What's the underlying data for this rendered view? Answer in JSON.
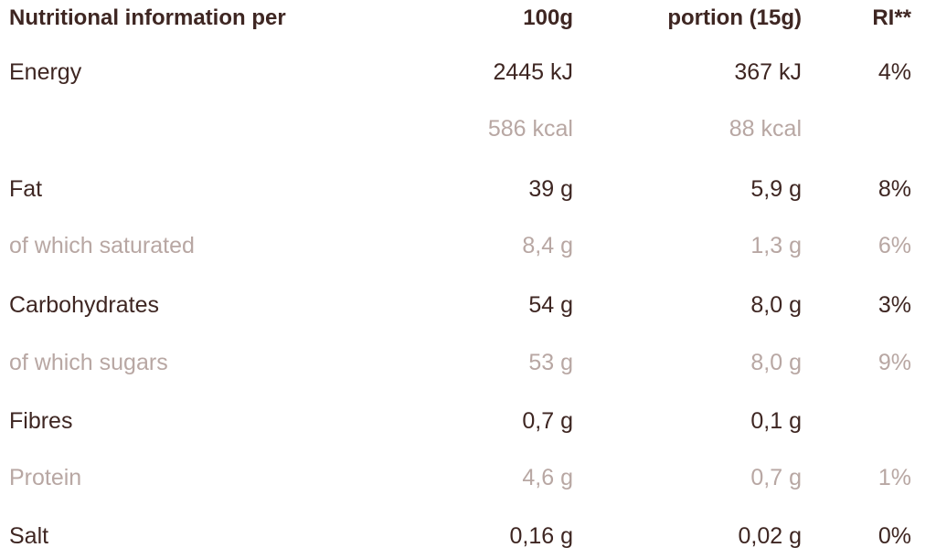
{
  "table": {
    "header": [
      "Nutritional information per",
      "100g",
      "portion (15g)",
      "RI**"
    ],
    "rows": [
      [
        "Energy",
        "2445 kJ",
        "367 kJ",
        "4%"
      ],
      [
        null,
        "586 kcal",
        "88 kcal",
        null
      ],
      [
        "Fat",
        "39 g",
        "5,9 g",
        "8%"
      ],
      [
        "of which saturated",
        "8,4 g",
        "1,3 g",
        "6%"
      ],
      [
        "Carbohydrates",
        "54 g",
        "8,0 g",
        "3%"
      ],
      [
        "of which sugars",
        "53 g",
        "8,0 g",
        "9%"
      ],
      [
        "Fibres",
        "0,7 g",
        "0,1 g",
        null
      ],
      [
        "Protein",
        "4,6 g",
        "0,7 g",
        "1%"
      ],
      [
        "Salt",
        "0,16 g",
        "0,02 g",
        "0%"
      ]
    ]
  }
}
